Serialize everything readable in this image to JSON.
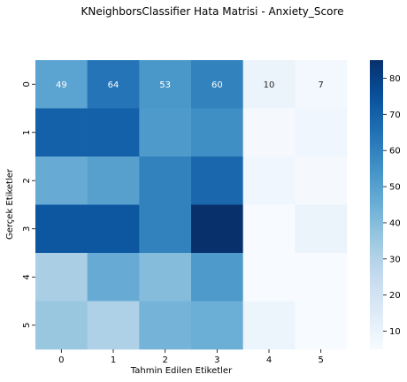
{
  "chart_data": {
    "type": "heatmap",
    "title": "KNeighborsClassifier Hata Matrisi - Anxiety_Score",
    "xlabel": "Tahmin Edilen Etiketler",
    "ylabel": "Gerçek Etiketler",
    "x_categories": [
      "0",
      "1",
      "2",
      "3",
      "4",
      "5"
    ],
    "y_categories": [
      "0",
      "1",
      "2",
      "3",
      "4",
      "5"
    ],
    "values": [
      [
        49,
        64,
        53,
        60,
        10,
        7
      ],
      [
        70,
        70,
        52,
        56,
        6,
        8
      ],
      [
        46,
        50,
        60,
        68,
        8,
        6
      ],
      [
        73,
        73,
        60,
        85,
        5,
        10
      ],
      [
        32,
        46,
        40,
        52,
        5,
        5
      ],
      [
        36,
        31,
        43,
        45,
        9,
        5
      ]
    ],
    "annotated_rows": [
      0
    ],
    "colormap": "Blues",
    "colorbar": {
      "min": 5,
      "max": 85,
      "ticks": [
        10,
        20,
        30,
        40,
        50,
        60,
        70,
        80
      ]
    }
  }
}
